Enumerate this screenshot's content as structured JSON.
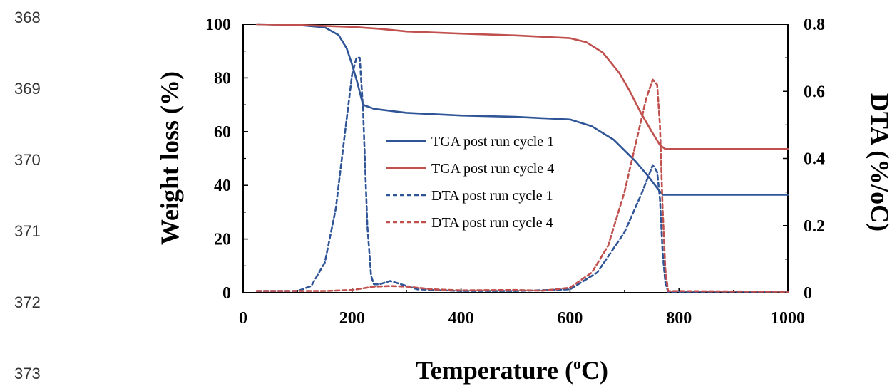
{
  "page": {
    "line_numbers": [
      "368",
      "369",
      "370",
      "371",
      "372",
      "373"
    ]
  },
  "chart_data": {
    "type": "line",
    "title": "",
    "xlabel": "Temperature (oC)",
    "xlabel_main": "Temperature (",
    "xlabel_sup": "o",
    "xlabel_end": "C)",
    "ylabel": "Weight loss (%)",
    "y2label": "DTA (%/oC)",
    "xlim": [
      0,
      1000
    ],
    "ylim": [
      0,
      100
    ],
    "y2lim": [
      0,
      0.8
    ],
    "xticks": [
      "0",
      "200",
      "400",
      "600",
      "800",
      "1000"
    ],
    "yticks": [
      "0",
      "20",
      "40",
      "60",
      "80",
      "100"
    ],
    "y2ticks": [
      "0",
      "0.2",
      "0.4",
      "0.6",
      "0.8"
    ],
    "grid": false,
    "legend_position": "center",
    "series": [
      {
        "name": "TGA post run cycle 1",
        "axis": "left",
        "color": "#2f5597",
        "dash": "solid",
        "x": [
          25,
          100,
          150,
          175,
          190,
          200,
          210,
          220,
          240,
          300,
          400,
          500,
          600,
          640,
          680,
          720,
          745,
          760,
          770,
          780,
          850,
          1000
        ],
        "y": [
          100,
          99.7,
          98.8,
          96,
          91,
          85,
          78,
          70,
          68.5,
          67,
          66,
          65.5,
          64.5,
          62,
          57,
          49,
          43,
          39,
          36.5,
          36.5,
          36.5,
          36.5
        ]
      },
      {
        "name": "TGA post run cycle 4",
        "axis": "left",
        "color": "#c0504d",
        "dash": "solid",
        "x": [
          25,
          100,
          200,
          250,
          300,
          400,
          500,
          550,
          600,
          630,
          660,
          690,
          710,
          730,
          750,
          765,
          775,
          800,
          1000
        ],
        "y": [
          100,
          99.7,
          99,
          98.3,
          97.3,
          96.5,
          95.8,
          95.3,
          94.8,
          93.3,
          89.5,
          82,
          75,
          67,
          60,
          55,
          53.5,
          53.5,
          53.5
        ]
      },
      {
        "name": "DTA post run cycle 1",
        "axis": "right",
        "color": "#2f5597",
        "dash": "dashed",
        "x": [
          25,
          60,
          100,
          125,
          150,
          170,
          185,
          200,
          208,
          214,
          220,
          228,
          235,
          240,
          250,
          270,
          290,
          320,
          400,
          500,
          600,
          650,
          700,
          730,
          752,
          760,
          765,
          770,
          775,
          780,
          1000
        ],
        "y": [
          0.005,
          0.005,
          0.005,
          0.02,
          0.09,
          0.25,
          0.45,
          0.65,
          0.7,
          0.7,
          0.55,
          0.2,
          0.05,
          0.025,
          0.025,
          0.035,
          0.025,
          0.01,
          0.005,
          0.005,
          0.01,
          0.06,
          0.18,
          0.29,
          0.38,
          0.36,
          0.28,
          0.12,
          0.03,
          0.003,
          0.003
        ]
      },
      {
        "name": "DTA post run cycle 4",
        "axis": "right",
        "color": "#c0504d",
        "dash": "dashed",
        "x": [
          25,
          100,
          150,
          200,
          240,
          270,
          300,
          350,
          400,
          500,
          550,
          600,
          640,
          670,
          700,
          720,
          740,
          752,
          760,
          765,
          770,
          775,
          780,
          1000
        ],
        "y": [
          0.005,
          0.005,
          0.005,
          0.008,
          0.018,
          0.02,
          0.018,
          0.01,
          0.007,
          0.008,
          0.006,
          0.015,
          0.06,
          0.14,
          0.3,
          0.44,
          0.58,
          0.635,
          0.62,
          0.5,
          0.25,
          0.07,
          0.005,
          0.003
        ]
      }
    ]
  }
}
